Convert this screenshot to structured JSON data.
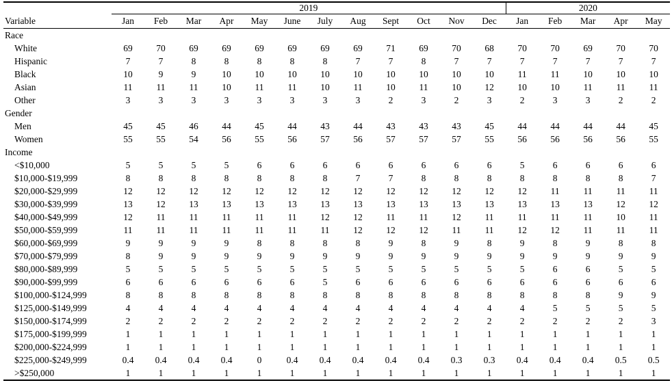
{
  "table": {
    "year_groups": [
      {
        "label": "2019",
        "span": 12
      },
      {
        "label": "2020",
        "span": 5
      }
    ],
    "row_header_label": "Variable",
    "month_headers": [
      "Jan",
      "Feb",
      "Mar",
      "Apr",
      "May",
      "June",
      "July",
      "Aug",
      "Sept",
      "Oct",
      "Nov",
      "Dec",
      "Jan",
      "Feb",
      "Mar",
      "Apr",
      "May"
    ],
    "sections": [
      {
        "label": "Race",
        "rows": [
          {
            "label": "White",
            "values": [
              "69",
              "70",
              "69",
              "69",
              "69",
              "69",
              "69",
              "69",
              "71",
              "69",
              "70",
              "68",
              "70",
              "70",
              "69",
              "70",
              "70"
            ]
          },
          {
            "label": "Hispanic",
            "values": [
              "7",
              "7",
              "8",
              "8",
              "8",
              "8",
              "8",
              "7",
              "7",
              "8",
              "7",
              "7",
              "7",
              "7",
              "7",
              "7",
              "7"
            ]
          },
          {
            "label": "Black",
            "values": [
              "10",
              "9",
              "9",
              "10",
              "10",
              "10",
              "10",
              "10",
              "10",
              "10",
              "10",
              "10",
              "11",
              "11",
              "10",
              "10",
              "10"
            ]
          },
          {
            "label": "Asian",
            "values": [
              "11",
              "11",
              "11",
              "10",
              "11",
              "11",
              "10",
              "11",
              "10",
              "11",
              "10",
              "12",
              "10",
              "10",
              "11",
              "11",
              "11"
            ]
          },
          {
            "label": "Other",
            "values": [
              "3",
              "3",
              "3",
              "3",
              "3",
              "3",
              "3",
              "3",
              "2",
              "3",
              "2",
              "3",
              "2",
              "3",
              "3",
              "2",
              "2"
            ]
          }
        ]
      },
      {
        "label": "Gender",
        "rows": [
          {
            "label": "Men",
            "values": [
              "45",
              "45",
              "46",
              "44",
              "45",
              "44",
              "43",
              "44",
              "43",
              "43",
              "43",
              "45",
              "44",
              "44",
              "44",
              "44",
              "45"
            ]
          },
          {
            "label": "Women",
            "values": [
              "55",
              "55",
              "54",
              "56",
              "55",
              "56",
              "57",
              "56",
              "57",
              "57",
              "57",
              "55",
              "56",
              "56",
              "56",
              "56",
              "55"
            ]
          }
        ]
      },
      {
        "label": "Income",
        "rows": [
          {
            "label": "<$10,000",
            "values": [
              "5",
              "5",
              "5",
              "5",
              "6",
              "6",
              "6",
              "6",
              "6",
              "6",
              "6",
              "6",
              "5",
              "6",
              "6",
              "6",
              "6"
            ]
          },
          {
            "label": "$10,000-$19,999",
            "values": [
              "8",
              "8",
              "8",
              "8",
              "8",
              "8",
              "8",
              "7",
              "7",
              "8",
              "8",
              "8",
              "8",
              "8",
              "8",
              "8",
              "7"
            ]
          },
          {
            "label": "$20,000-$29,999",
            "values": [
              "12",
              "12",
              "12",
              "12",
              "12",
              "12",
              "12",
              "12",
              "12",
              "12",
              "12",
              "12",
              "12",
              "11",
              "11",
              "11",
              "11"
            ]
          },
          {
            "label": "$30,000-$39,999",
            "values": [
              "13",
              "12",
              "13",
              "13",
              "13",
              "13",
              "13",
              "13",
              "13",
              "13",
              "13",
              "13",
              "13",
              "13",
              "13",
              "12",
              "12"
            ]
          },
          {
            "label": "$40,000-$49,999",
            "values": [
              "12",
              "11",
              "11",
              "11",
              "11",
              "11",
              "12",
              "12",
              "11",
              "11",
              "12",
              "11",
              "11",
              "11",
              "11",
              "10",
              "11"
            ]
          },
          {
            "label": "$50,000-$59,999",
            "values": [
              "11",
              "11",
              "11",
              "11",
              "11",
              "11",
              "11",
              "12",
              "12",
              "12",
              "11",
              "11",
              "12",
              "12",
              "11",
              "11",
              "11"
            ]
          },
          {
            "label": "$60,000-$69,999",
            "values": [
              "9",
              "9",
              "9",
              "9",
              "8",
              "8",
              "8",
              "8",
              "9",
              "8",
              "9",
              "8",
              "9",
              "8",
              "9",
              "8",
              "8"
            ]
          },
          {
            "label": "$70,000-$79,999",
            "values": [
              "8",
              "9",
              "9",
              "9",
              "9",
              "9",
              "9",
              "9",
              "9",
              "9",
              "9",
              "9",
              "9",
              "9",
              "9",
              "9",
              "9"
            ]
          },
          {
            "label": "$80,000-$89,999",
            "values": [
              "5",
              "5",
              "5",
              "5",
              "5",
              "5",
              "5",
              "5",
              "5",
              "5",
              "5",
              "5",
              "5",
              "6",
              "6",
              "5",
              "5"
            ]
          },
          {
            "label": "$90,000-$99,999",
            "values": [
              "6",
              "6",
              "6",
              "6",
              "6",
              "6",
              "5",
              "6",
              "6",
              "6",
              "6",
              "6",
              "6",
              "6",
              "6",
              "6",
              "6"
            ]
          },
          {
            "label": "$100,000-$124,999",
            "values": [
              "8",
              "8",
              "8",
              "8",
              "8",
              "8",
              "8",
              "8",
              "8",
              "8",
              "8",
              "8",
              "8",
              "8",
              "8",
              "9",
              "9"
            ]
          },
          {
            "label": "$125,000-$149,999",
            "values": [
              "4",
              "4",
              "4",
              "4",
              "4",
              "4",
              "4",
              "4",
              "4",
              "4",
              "4",
              "4",
              "4",
              "5",
              "5",
              "5",
              "5"
            ]
          },
          {
            "label": "$150,000-$174,999",
            "values": [
              "2",
              "2",
              "2",
              "2",
              "2",
              "2",
              "2",
              "2",
              "2",
              "2",
              "2",
              "2",
              "2",
              "2",
              "2",
              "2",
              "3"
            ]
          },
          {
            "label": "$175,000-$199,999",
            "values": [
              "1",
              "1",
              "1",
              "1",
              "1",
              "1",
              "1",
              "1",
              "1",
              "1",
              "1",
              "1",
              "1",
              "1",
              "1",
              "1",
              "1"
            ]
          },
          {
            "label": "$200,000-$224,999",
            "values": [
              "1",
              "1",
              "1",
              "1",
              "1",
              "1",
              "1",
              "1",
              "1",
              "1",
              "1",
              "1",
              "1",
              "1",
              "1",
              "1",
              "1"
            ]
          },
          {
            "label": "$225,000-$249,999",
            "values": [
              "0.4",
              "0.4",
              "0.4",
              "0.4",
              "0",
              "0.4",
              "0.4",
              "0.4",
              "0.4",
              "0.4",
              "0.3",
              "0.3",
              "0.4",
              "0.4",
              "0.4",
              "0.5",
              "0.5"
            ]
          },
          {
            "label": ">$250,000",
            "values": [
              "1",
              "1",
              "1",
              "1",
              "1",
              "1",
              "1",
              "1",
              "1",
              "1",
              "1",
              "1",
              "1",
              "1",
              "1",
              "1",
              "1"
            ]
          }
        ]
      }
    ]
  }
}
